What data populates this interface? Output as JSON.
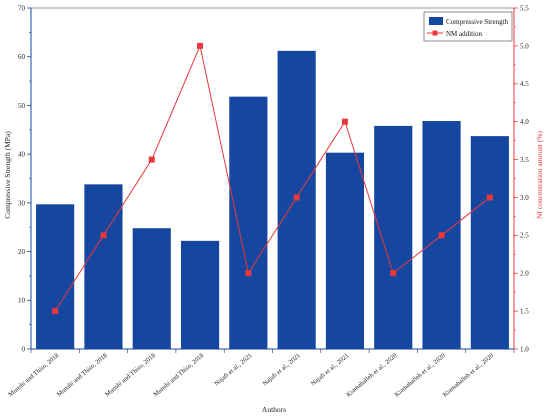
{
  "chart_data": {
    "type": "bar",
    "title": "",
    "xlabel": "Authors",
    "ylabel": "Compressive Strength (MPa)",
    "y2label": "NI concentration amount (%)",
    "ylim": [
      0,
      70
    ],
    "y2lim": [
      1.0,
      5.5
    ],
    "yticks": [
      "0",
      "10",
      "20",
      "30",
      "40",
      "50",
      "60",
      "70"
    ],
    "y2ticks": [
      "1.0",
      "1.5",
      "2.0",
      "2.5",
      "3.0",
      "3.5",
      "4.0",
      "4.5",
      "5.0",
      "5.5"
    ],
    "categories": [
      "Munshi and Thiso, 2018",
      "Munshi and Thiso, 2018",
      "Munshi and Thiso, 2018",
      "Munshi and Thiso, 2018",
      "Najafi et al., 2021",
      "Najafi et al., 2021",
      "Najafi et al., 2021",
      "Kiamahalleh et al., 2020",
      "Kiamahalleh et al., 2020",
      "Kiamahalleh et al., 2020"
    ],
    "series": [
      {
        "name": "Compressive Strength",
        "type": "bar",
        "axis": "left",
        "color": "#1547a0",
        "values": [
          29.7,
          33.8,
          24.8,
          22.2,
          51.8,
          61.2,
          40.3,
          45.8,
          46.8,
          43.7
        ]
      },
      {
        "name": "NM addition",
        "type": "line",
        "axis": "right",
        "color": "#e8383d",
        "values": [
          1.5,
          2.5,
          3.5,
          5.0,
          2.0,
          3.0,
          4.0,
          2.0,
          2.5,
          3.0
        ]
      }
    ],
    "legend_position": "top-right",
    "grid": false
  }
}
